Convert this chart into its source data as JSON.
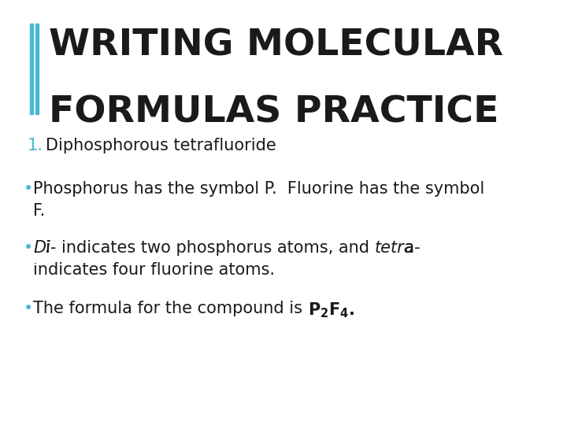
{
  "background_color": "#ffffff",
  "title_line1": "WRITING MOLECULAR",
  "title_line2": "FORMULAS PRACTICE",
  "title_color": "#1a1a1a",
  "title_fontsize": 34,
  "accent_color": "#4ab8d0",
  "numbered_item_color": "#4ab8d0",
  "numbered_item_fontsize": 15,
  "numbered_item_text": "Diphosphorous tetrafluoride",
  "bullet_color": "#4ab8d0",
  "body_color": "#1a1a1a",
  "body_fontsize": 15,
  "bullet1_line1": "Phosphorus has the symbol P.  Fluorine has the symbol",
  "bullet1_line2": "F.",
  "bullet2_italic1": "Di",
  "bullet2_normal1": "- indicates two phosphorus atoms, and ",
  "bullet2_italic2": "tetra",
  "bullet2_normal2": "-",
  "bullet2_line2": "indicates four fluorine atoms.",
  "bullet3_pre": "The formula for the compound is ",
  "bullet3_post": "."
}
